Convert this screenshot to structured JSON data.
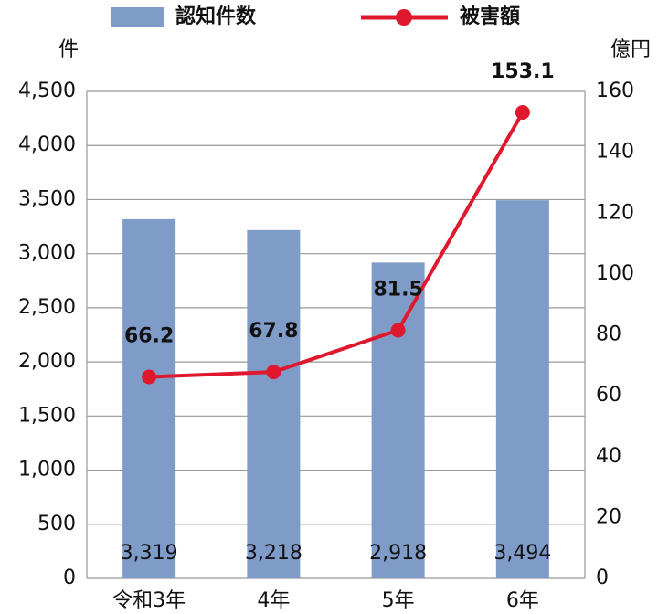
{
  "chart_data": {
    "type": "combo",
    "categories": [
      "令和3年",
      "4年",
      "5年",
      "6年"
    ],
    "series": [
      {
        "name": "認知件数",
        "type": "bar",
        "color": "#7f9cc9",
        "values": [
          3319,
          3218,
          2918,
          3494
        ],
        "value_labels": [
          "3,319",
          "3,218",
          "2,918",
          "3,494"
        ]
      },
      {
        "name": "被害額",
        "type": "line",
        "axis": "y2",
        "color": "#e0182d",
        "values": [
          66.2,
          67.8,
          81.5,
          153.1
        ]
      }
    ],
    "y_label": "件",
    "y2_label": "億円",
    "ylim": [
      0,
      4500
    ],
    "yticks": [
      0,
      500,
      {
        "value": 1000,
        "label": "1,000"
      },
      {
        "value": 1500,
        "label": "1,500"
      },
      {
        "value": 2000,
        "label": "2,000"
      },
      {
        "value": 2500,
        "label": "2,500"
      },
      {
        "value": 3000,
        "label": "3,000"
      },
      {
        "value": 3500,
        "label": "3,500"
      },
      {
        "value": 4000,
        "label": "4,000"
      },
      {
        "value": 4500,
        "label": "4,500"
      }
    ],
    "y2lim": [
      0,
      160
    ],
    "y2ticks": [
      0,
      20,
      40,
      60,
      80,
      100,
      120,
      140,
      160
    ],
    "grid": true
  }
}
